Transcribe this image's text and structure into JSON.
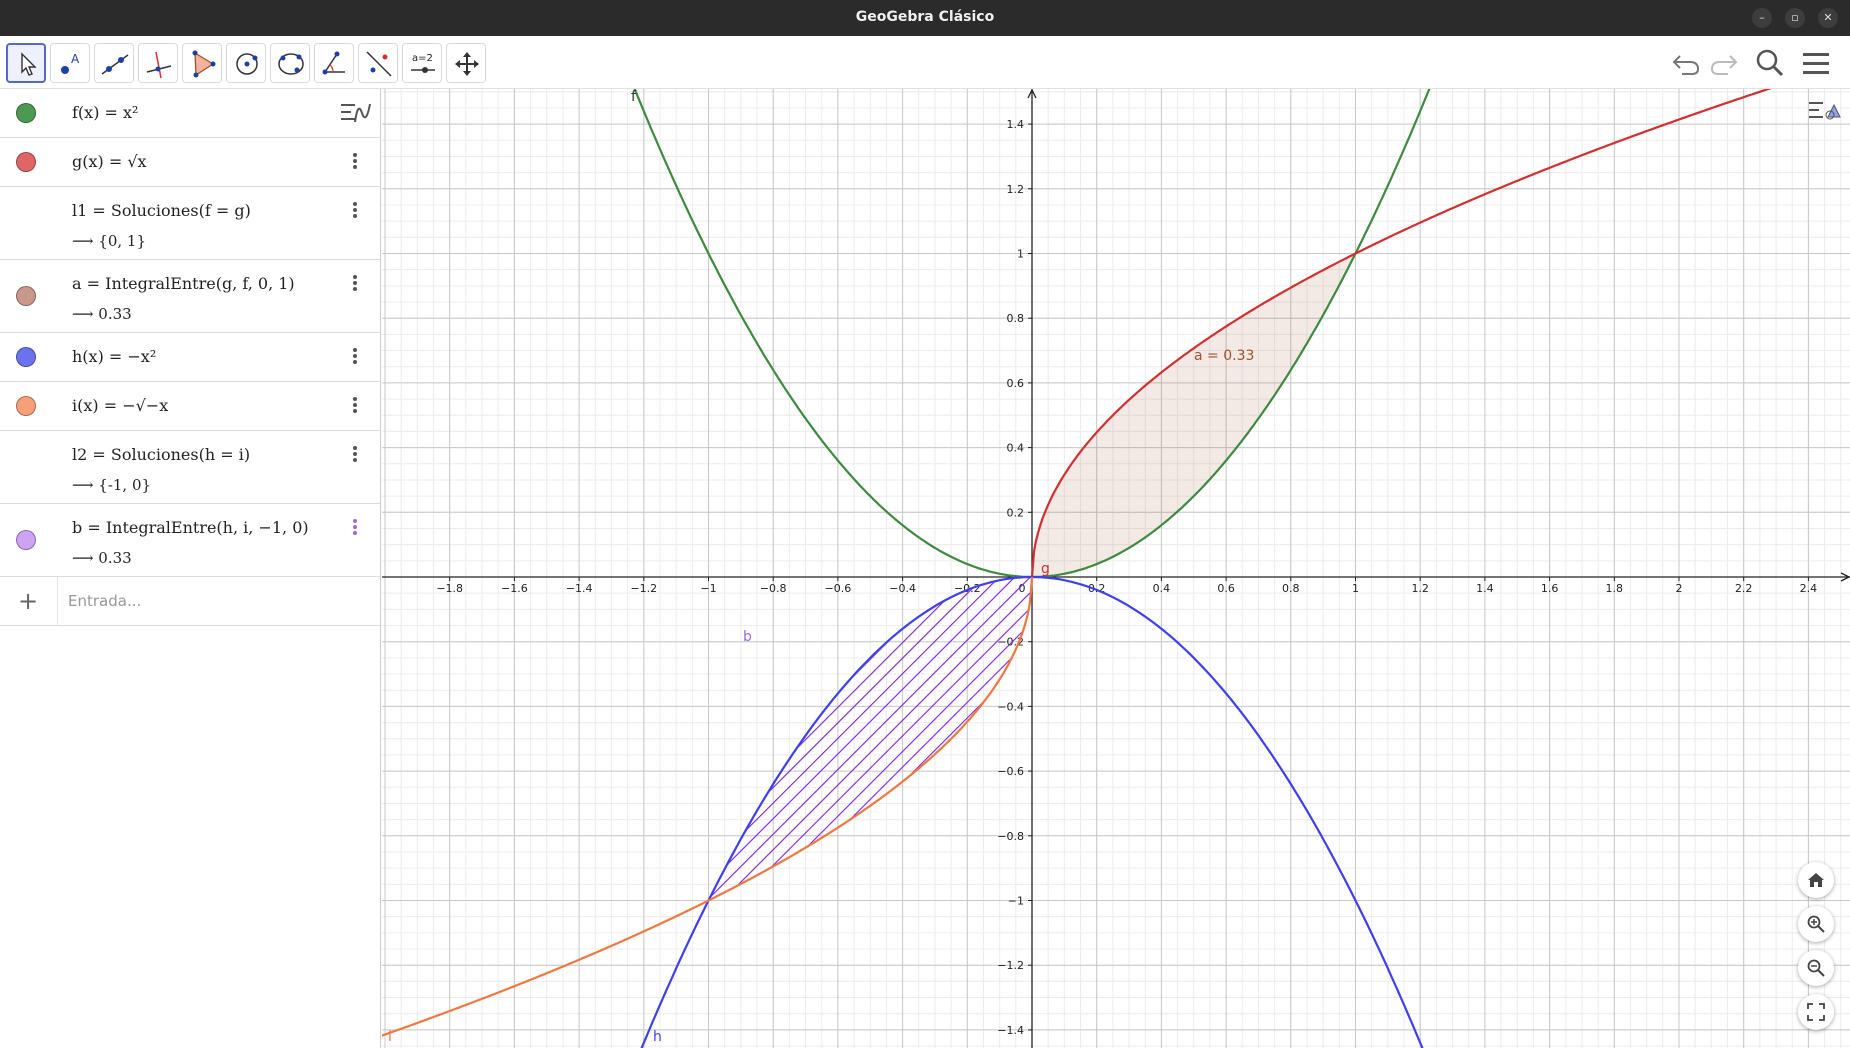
{
  "window": {
    "title": "GeoGebra Clásico"
  },
  "toolbar": {
    "tools": [
      "move-tool-icon",
      "point-tool-icon",
      "line-tool-icon",
      "perpendicular-tool-icon",
      "polygon-tool-icon",
      "circle-tool-icon",
      "conic-tool-icon",
      "angle-tool-icon",
      "reflect-tool-icon",
      "slider-tool-icon",
      "move-graphics-tool-icon"
    ],
    "slider_label": "a=2",
    "point_label": "A"
  },
  "algebra": {
    "rows": [
      {
        "name": "f",
        "color": "#4c9a52",
        "def": "f(x)  =  x²"
      },
      {
        "name": "g",
        "color": "#e06666",
        "def": "g(x)  =  √x"
      },
      {
        "name": "l1",
        "color": null,
        "def": "l1  =  Soluciones(f  =  g)",
        "out": "⟶  {0, 1}"
      },
      {
        "name": "a",
        "color": "#c9988a",
        "def": "a  =  IntegralEntre(g, f, 0, 1)",
        "out": "⟶  0.33"
      },
      {
        "name": "h",
        "color": "#6b72f0",
        "def": "h(x)  =  −x²"
      },
      {
        "name": "i",
        "color": "#f6a07a",
        "def": "i(x)  =  −√−x"
      },
      {
        "name": "l2",
        "color": null,
        "def": "l2  =  Soluciones(h  =  i)",
        "out": "⟶  {-1, 0}"
      },
      {
        "name": "b",
        "color": "#cfa3f4",
        "def": "b  =  IntegralEntre(h, i, −1, 0)",
        "out": "⟶  0.33"
      }
    ],
    "input_placeholder": "Entrada..."
  },
  "graph": {
    "x_ticks": [
      "−1.8",
      "−1.6",
      "−1.4",
      "−1.2",
      "−1",
      "−0.8",
      "−0.6",
      "−0.4",
      "−0.2",
      "0",
      "0.2",
      "0.4",
      "0.6",
      "0.8",
      "1",
      "1.2",
      "1.4",
      "1.6",
      "1.8",
      "2",
      "2.2",
      "2.4"
    ],
    "y_ticks": [
      "1.4",
      "1.2",
      "1",
      "0.8",
      "0.6",
      "0.4",
      "0.2",
      "−0.2",
      "−0.4",
      "−0.6",
      "−0.8",
      "−1",
      "−1.2",
      "−1.4"
    ],
    "labels": {
      "f": "f",
      "g": "g",
      "h": "h",
      "i": "i",
      "b": "b",
      "a": "a = 0.33"
    },
    "colors": {
      "f": "#3e8a3e",
      "g": "#d32f2f",
      "h": "#3f3ff0",
      "i": "#f07840",
      "a_fill": "#a0522d",
      "b_fill": "#7a1fe0"
    }
  }
}
